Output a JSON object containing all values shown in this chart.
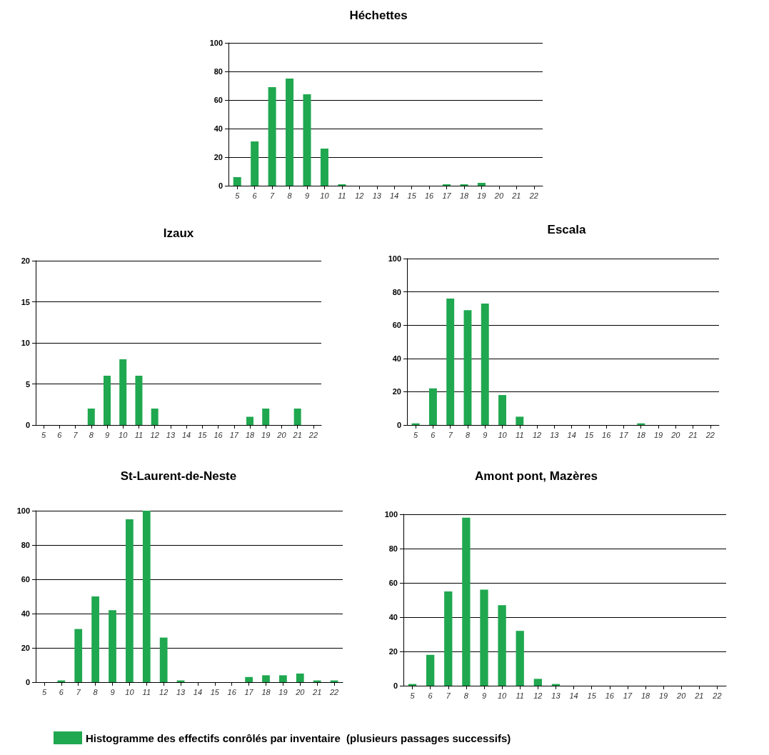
{
  "chart_data": [
    {
      "type": "bar",
      "title": "Héchettes",
      "categories": [
        "5",
        "6",
        "7",
        "8",
        "9",
        "10",
        "11",
        "12",
        "13",
        "14",
        "15",
        "16",
        "17",
        "18",
        "19",
        "20",
        "21",
        "22"
      ],
      "series": [
        {
          "color": "#1fa84f",
          "values": [
            6,
            31,
            69,
            75,
            64,
            26,
            1,
            0,
            0,
            0,
            0,
            0,
            1,
            1,
            2,
            0,
            0,
            0
          ]
        }
      ],
      "ylim": [
        0,
        100
      ],
      "yticks": [
        0,
        20,
        40,
        60,
        80,
        100
      ],
      "grid": "y"
    },
    {
      "type": "bar",
      "title": "Izaux",
      "categories": [
        "5",
        "6",
        "7",
        "8",
        "9",
        "10",
        "11",
        "12",
        "13",
        "14",
        "15",
        "16",
        "17",
        "18",
        "19",
        "20",
        "21",
        "22"
      ],
      "series": [
        {
          "color": "#1fa84f",
          "values": [
            0,
            0,
            0,
            2,
            6,
            8,
            6,
            2,
            0,
            0,
            0,
            0,
            0,
            1,
            2,
            0,
            2,
            0
          ]
        }
      ],
      "ylim": [
        0,
        20
      ],
      "yticks": [
        0,
        5,
        10,
        15,
        20
      ],
      "grid": "y"
    },
    {
      "type": "bar",
      "title": "Escala",
      "categories": [
        "5",
        "6",
        "7",
        "8",
        "9",
        "10",
        "11",
        "12",
        "13",
        "14",
        "15",
        "16",
        "17",
        "18",
        "19",
        "20",
        "21",
        "22"
      ],
      "series": [
        {
          "color": "#1fa84f",
          "values": [
            1,
            22,
            76,
            69,
            73,
            18,
            5,
            0,
            0,
            0,
            0,
            0,
            0,
            1,
            0,
            0,
            0,
            0
          ]
        }
      ],
      "ylim": [
        0,
        100
      ],
      "yticks": [
        0,
        20,
        40,
        60,
        80,
        100
      ],
      "grid": "y"
    },
    {
      "type": "bar",
      "title": "St-Laurent-de-Neste",
      "categories": [
        "5",
        "6",
        "7",
        "8",
        "9",
        "10",
        "11",
        "12",
        "13",
        "14",
        "15",
        "16",
        "17",
        "18",
        "19",
        "20",
        "21",
        "22"
      ],
      "series": [
        {
          "color": "#1fa84f",
          "values": [
            0,
            1,
            31,
            50,
            42,
            95,
            100,
            26,
            1,
            0,
            0,
            0,
            3,
            4,
            4,
            5,
            1,
            1
          ]
        }
      ],
      "ylim": [
        0,
        100
      ],
      "yticks": [
        0,
        20,
        40,
        60,
        80,
        100
      ],
      "grid": "y"
    },
    {
      "type": "bar",
      "title": "Amont pont, Mazères",
      "categories": [
        "5",
        "6",
        "7",
        "8",
        "9",
        "10",
        "11",
        "12",
        "13",
        "14",
        "15",
        "16",
        "17",
        "18",
        "19",
        "20",
        "21",
        "22"
      ],
      "series": [
        {
          "name": "Histogramme des effectifs conrôlés par inventaire  (plusieurs passages successifs)",
          "color": "#1fa84f",
          "values": [
            1,
            18,
            55,
            98,
            56,
            47,
            32,
            4,
            1,
            0,
            0,
            0,
            0,
            0,
            0,
            0,
            0,
            0
          ]
        }
      ],
      "ylim": [
        0,
        100
      ],
      "yticks": [
        0,
        20,
        40,
        60,
        80,
        100
      ],
      "grid": "y",
      "legend": "bottom"
    }
  ]
}
